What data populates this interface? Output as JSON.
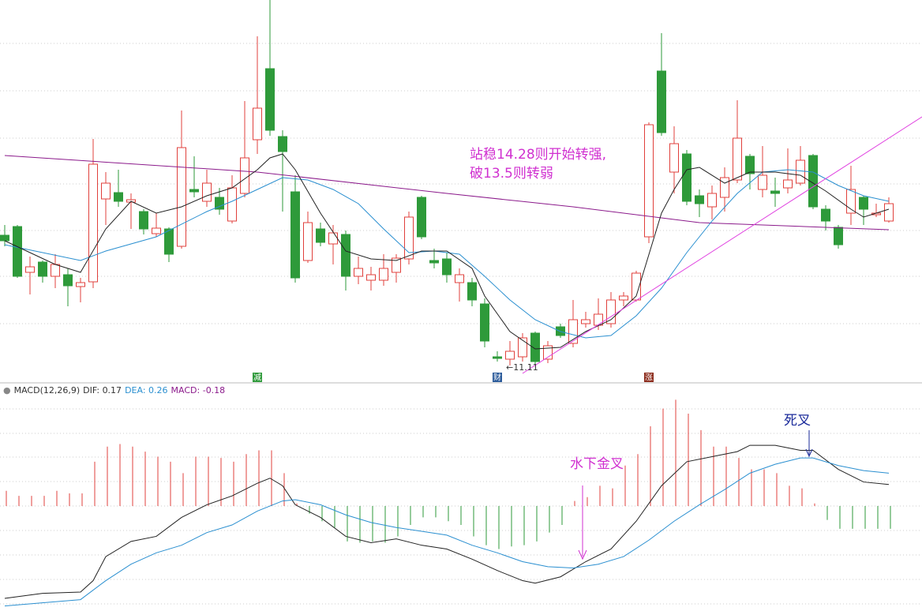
{
  "chart_data": [
    {
      "type": "candlestick",
      "up_color": "#e0403c",
      "down_color": "#2e9a3a",
      "ylim": [
        10.99,
        15.74
      ],
      "open": [
        12.76,
        12.87,
        12.29,
        12.42,
        12.24,
        12.26,
        12.11,
        12.17,
        13.22,
        13.3,
        13.18,
        13.06,
        12.78,
        12.84,
        12.62,
        13.34,
        13.19,
        13.24,
        12.94,
        13.29,
        13.97,
        14.87,
        14.01,
        13.31,
        12.44,
        12.84,
        12.65,
        12.77,
        12.24,
        12.19,
        12.19,
        12.29,
        12.46,
        13.24,
        12.44,
        12.46,
        12.16,
        12.16,
        11.89,
        11.22,
        11.19,
        11.22,
        11.52,
        11.19,
        11.6,
        11.39,
        11.64,
        11.62,
        11.64,
        11.94,
        11.94,
        12.74,
        14.84,
        13.56,
        13.79,
        13.26,
        13.12,
        13.24,
        13.46,
        13.76,
        13.34,
        13.32,
        13.36,
        13.42,
        13.77,
        13.09,
        12.86,
        13.04,
        13.24,
        13.02,
        12.94
      ],
      "high": [
        12.89,
        12.89,
        12.49,
        12.44,
        12.52,
        12.34,
        12.22,
        13.98,
        13.56,
        13.59,
        13.29,
        13.09,
        13.04,
        12.86,
        14.34,
        13.76,
        13.59,
        13.36,
        13.52,
        14.46,
        15.28,
        15.74,
        14.09,
        13.52,
        13.06,
        12.92,
        12.89,
        12.82,
        12.49,
        12.36,
        12.52,
        12.52,
        13.06,
        13.26,
        12.59,
        12.54,
        12.34,
        12.22,
        11.96,
        11.29,
        11.42,
        11.52,
        11.54,
        11.42,
        11.64,
        11.94,
        11.79,
        11.96,
        12.04,
        12.04,
        12.31,
        14.19,
        15.32,
        14.14,
        13.84,
        13.34,
        13.39,
        13.62,
        14.47,
        13.79,
        13.89,
        13.49,
        13.86,
        13.89,
        13.79,
        13.14,
        12.89,
        13.64,
        13.26,
        13.16,
        13.24
      ],
      "low": [
        12.62,
        12.22,
        12.01,
        12.16,
        12.09,
        11.86,
        11.91,
        12.09,
        12.89,
        13.12,
        12.84,
        12.77,
        12.74,
        12.42,
        12.59,
        13.24,
        13.12,
        13.02,
        12.91,
        13.24,
        13.79,
        14.02,
        13.06,
        12.16,
        12.41,
        12.62,
        12.39,
        12.06,
        12.14,
        12.06,
        12.12,
        12.16,
        12.39,
        12.71,
        12.34,
        12.16,
        11.92,
        11.86,
        11.34,
        11.16,
        11.11,
        11.16,
        11.12,
        11.14,
        11.46,
        11.34,
        11.59,
        11.56,
        11.59,
        11.86,
        11.92,
        12.66,
        14.02,
        13.29,
        13.14,
        12.99,
        12.96,
        13.06,
        13.42,
        13.34,
        13.24,
        13.12,
        13.29,
        13.39,
        13.09,
        12.82,
        12.59,
        12.89,
        12.89,
        12.99,
        12.92
      ],
      "close": [
        12.69,
        12.24,
        12.36,
        12.24,
        12.39,
        12.12,
        12.16,
        13.66,
        13.42,
        13.19,
        13.21,
        12.84,
        12.85,
        12.52,
        13.87,
        13.31,
        13.42,
        13.09,
        13.36,
        13.74,
        14.37,
        14.09,
        13.82,
        12.22,
        12.92,
        12.67,
        12.79,
        12.24,
        12.34,
        12.26,
        12.34,
        12.47,
        12.99,
        12.74,
        12.41,
        12.26,
        12.26,
        11.94,
        11.42,
        11.2,
        11.29,
        11.46,
        11.16,
        11.36,
        11.49,
        11.69,
        11.69,
        11.76,
        11.94,
        11.99,
        12.28,
        14.16,
        14.06,
        13.92,
        13.19,
        13.16,
        13.29,
        13.49,
        13.99,
        13.54,
        13.52,
        13.29,
        13.46,
        13.71,
        13.12,
        12.94,
        12.64,
        13.34,
        13.09,
        13.04,
        13.16
      ],
      "lines": [
        {
          "color": "#8b1a8b",
          "x": [
            0,
            20,
            35,
            45,
            55,
            70
          ],
          "values": [
            13.77,
            13.56,
            13.29,
            13.12,
            12.92,
            12.83
          ]
        },
        {
          "color": "#2a8fd0",
          "x": [
            0,
            6,
            8,
            12,
            16,
            18,
            20,
            22,
            24,
            26,
            28,
            30,
            32,
            34,
            36,
            38,
            40,
            42,
            44,
            46,
            48,
            50,
            52,
            54,
            56,
            58,
            60,
            62,
            64,
            66,
            68,
            70
          ],
          "values": [
            12.64,
            12.44,
            12.56,
            12.74,
            13.06,
            13.19,
            13.34,
            13.49,
            13.46,
            13.34,
            13.16,
            12.84,
            12.54,
            12.56,
            12.52,
            12.24,
            11.94,
            11.69,
            11.54,
            11.46,
            11.49,
            11.74,
            12.09,
            12.54,
            12.94,
            13.29,
            13.56,
            13.59,
            13.56,
            13.39,
            13.26,
            13.19
          ]
        },
        {
          "color": "#222222",
          "x": [
            0,
            2,
            4,
            6,
            8,
            10,
            12,
            14,
            16,
            18,
            20,
            21,
            22,
            23,
            25,
            27,
            29,
            31,
            33,
            35,
            37,
            38,
            40,
            42,
            44,
            46,
            48,
            50,
            52,
            53,
            54,
            55,
            57,
            59,
            61,
            63,
            65,
            67,
            68,
            70
          ],
          "values": [
            12.69,
            12.54,
            12.39,
            12.29,
            12.84,
            13.19,
            13.04,
            13.12,
            13.26,
            13.36,
            13.59,
            13.74,
            13.79,
            13.59,
            13.04,
            12.56,
            12.46,
            12.44,
            12.56,
            12.56,
            12.34,
            11.99,
            11.54,
            11.32,
            11.34,
            11.54,
            11.69,
            11.99,
            13.04,
            13.34,
            13.59,
            13.62,
            13.42,
            13.56,
            13.56,
            13.52,
            13.32,
            13.09,
            12.99,
            13.09
          ]
        }
      ],
      "markers": [
        {
          "label": "减",
          "x": 20,
          "color": "#2e9a3a"
        },
        {
          "label": "财",
          "x": 39,
          "color": "#2a5a9a"
        },
        {
          "label": "涨",
          "x": 51,
          "color": "#8b2a1a"
        }
      ],
      "annotations": {
        "line1": "站稳14.28则开始转强,",
        "line2": "破13.5则转弱",
        "low_label": "←11.11"
      }
    },
    {
      "type": "macd",
      "title": "MACD(12,26,9)",
      "dif_label": "DIF:",
      "dif": 0.17,
      "dea_label": "DEA:",
      "dea": 0.26,
      "macd_label": "MACD:",
      "macd": -0.18,
      "ylim": [
        -0.83,
        0.88
      ],
      "up_color": "#e0403c",
      "down_color": "#2e9a3a",
      "histogram": [
        0.12,
        0.08,
        0.08,
        0.08,
        0.12,
        0.1,
        0.1,
        0.35,
        0.47,
        0.49,
        0.47,
        0.43,
        0.39,
        0.35,
        0.26,
        0.39,
        0.39,
        0.38,
        0.35,
        0.41,
        0.44,
        0.44,
        0.26,
        0.02,
        -0.06,
        -0.12,
        -0.17,
        -0.28,
        -0.29,
        -0.28,
        -0.29,
        -0.24,
        -0.15,
        -0.09,
        -0.09,
        -0.12,
        -0.15,
        -0.24,
        -0.31,
        -0.34,
        -0.32,
        -0.31,
        -0.28,
        -0.21,
        -0.15,
        0.04,
        0.07,
        0.16,
        0.14,
        0.32,
        0.41,
        0.63,
        0.77,
        0.84,
        0.73,
        0.6,
        0.47,
        0.47,
        0.38,
        0.29,
        0.29,
        0.26,
        0.16,
        0.14,
        0.02,
        -0.11,
        -0.18,
        -0.18,
        -0.18,
        -0.18,
        -0.18
      ],
      "lines": [
        {
          "color": "#222222",
          "x": [
            0,
            3,
            6,
            7,
            8,
            10,
            12,
            14,
            16,
            18,
            20,
            21,
            22,
            23,
            25,
            27,
            29,
            31,
            33,
            35,
            37,
            39,
            41,
            42,
            44,
            46,
            48,
            50,
            52,
            54,
            56,
            58,
            59,
            61,
            63,
            64,
            66,
            68,
            70
          ],
          "values": [
            -0.73,
            -0.69,
            -0.68,
            -0.59,
            -0.4,
            -0.28,
            -0.24,
            -0.09,
            0.01,
            0.08,
            0.18,
            0.22,
            0.16,
            0.01,
            -0.09,
            -0.24,
            -0.29,
            -0.26,
            -0.31,
            -0.34,
            -0.42,
            -0.51,
            -0.59,
            -0.61,
            -0.56,
            -0.44,
            -0.34,
            -0.12,
            0.16,
            0.35,
            0.39,
            0.43,
            0.48,
            0.48,
            0.44,
            0.44,
            0.29,
            0.19,
            0.17
          ]
        },
        {
          "color": "#2a8fd0",
          "x": [
            0,
            6,
            8,
            10,
            12,
            14,
            16,
            18,
            20,
            22,
            23,
            25,
            27,
            29,
            31,
            33,
            35,
            37,
            39,
            41,
            43,
            45,
            47,
            49,
            51,
            53,
            55,
            57,
            59,
            61,
            63,
            64,
            66,
            68,
            70
          ],
          "values": [
            -0.79,
            -0.74,
            -0.59,
            -0.46,
            -0.37,
            -0.31,
            -0.21,
            -0.15,
            -0.04,
            0.04,
            0.05,
            0.01,
            -0.07,
            -0.13,
            -0.17,
            -0.2,
            -0.23,
            -0.31,
            -0.37,
            -0.44,
            -0.48,
            -0.49,
            -0.46,
            -0.4,
            -0.27,
            -0.12,
            0.01,
            0.13,
            0.26,
            0.33,
            0.38,
            0.38,
            0.32,
            0.28,
            0.26
          ]
        }
      ],
      "annotations": {
        "golden": "水下金叉",
        "death": "死叉"
      }
    }
  ]
}
